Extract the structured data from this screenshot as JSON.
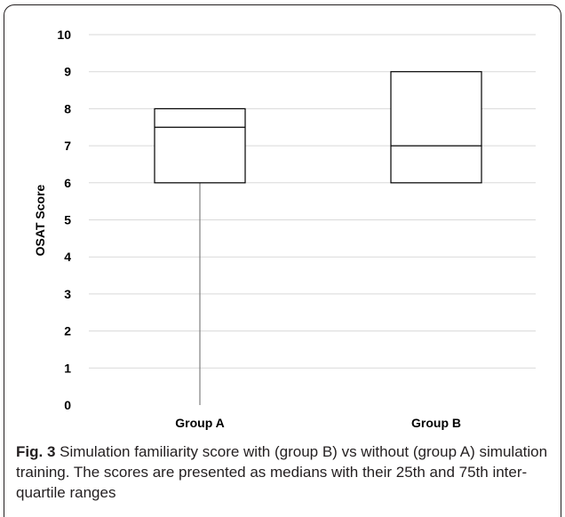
{
  "chart_data": {
    "type": "box",
    "ylabel": "OSAT Score",
    "ylim": [
      0,
      10
    ],
    "yticks": [
      "0",
      "1",
      "2",
      "3",
      "4",
      "5",
      "6",
      "7",
      "8",
      "9",
      "10"
    ],
    "categories": [
      "Group A",
      "Group B"
    ],
    "boxes": [
      {
        "category": "Group A",
        "whisker_low": 0,
        "q1": 6,
        "median": 7.5,
        "q3": 8,
        "whisker_high": 8
      },
      {
        "category": "Group B",
        "whisker_low": 6,
        "q1": 6,
        "median": 7,
        "q3": 9,
        "whisker_high": 9
      }
    ],
    "grid": true,
    "colors": {
      "box_edge": "#000000",
      "whisker": "#808080",
      "grid": "#d9d9d9"
    }
  },
  "caption": {
    "label": "Fig. 3",
    "text": " Simulation familiarity score with (group B) vs without (group A) simulation training. The scores are presented as medians with their 25th and 75th inter-quartile ranges"
  }
}
